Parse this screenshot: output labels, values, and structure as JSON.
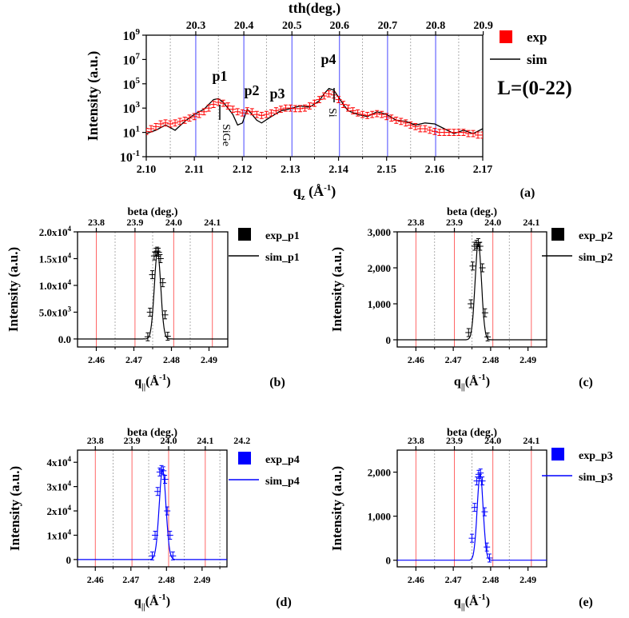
{
  "chart_data": [
    {
      "type": "line",
      "panel_label": "(a)",
      "xlabel": "q",
      "xlabel_sub": "z",
      "xlabel_unit": " (Å",
      "xlabel_unit_sup": "-1",
      "xlabel_unit_end": ")",
      "ylabel": "Intensity (a.u.)",
      "x2label": "tth(deg.)",
      "xlim": [
        2.1,
        2.17
      ],
      "ylim": [
        0.1,
        1000000000
      ],
      "yscale": "log",
      "xticks": [
        "2.10",
        "2.11",
        "2.12",
        "2.13",
        "2.14",
        "2.15",
        "2.16",
        "2.17"
      ],
      "yticks": [
        {
          "base": "10",
          "exp": "-1"
        },
        {
          "base": "10",
          "exp": "1"
        },
        {
          "base": "10",
          "exp": "3"
        },
        {
          "base": "10",
          "exp": "5"
        },
        {
          "base": "10",
          "exp": "7"
        },
        {
          "base": "10",
          "exp": "9"
        }
      ],
      "x2ticks": [
        "20.3",
        "20.4",
        "20.5",
        "20.6",
        "20.7",
        "20.8",
        "20.9"
      ],
      "x2tick_q": [
        2.1103,
        2.1203,
        2.1303,
        2.1402,
        2.1502,
        2.1602,
        2.1701
      ],
      "legend": [
        {
          "name": "exp",
          "marker": "square",
          "color": "#ff0000"
        },
        {
          "name": "sim",
          "marker": "line",
          "color": "#000000"
        }
      ],
      "annotations": {
        "p1": "p1",
        "p2": "p2",
        "p3": "p3",
        "p4": "p4",
        "sige": "SiGe",
        "si": "Si",
        "range": "L=(0-22)"
      },
      "series": [
        {
          "name": "sim",
          "color": "#000000",
          "x": [
            2.1,
            2.102,
            2.104,
            2.106,
            2.108,
            2.11,
            2.112,
            2.113,
            2.114,
            2.115,
            2.116,
            2.117,
            2.118,
            2.119,
            2.12,
            2.121,
            2.122,
            2.123,
            2.124,
            2.126,
            2.128,
            2.13,
            2.132,
            2.134,
            2.136,
            2.137,
            2.138,
            2.139,
            2.14,
            2.141,
            2.142,
            2.144,
            2.146,
            2.148,
            2.15,
            2.152,
            2.154,
            2.156,
            2.158,
            2.16,
            2.162,
            2.164,
            2.166,
            2.168,
            2.17
          ],
          "y": [
            8,
            15,
            40,
            15,
            80,
            300,
            800,
            2000,
            5000,
            6000,
            3000,
            1000,
            300,
            40,
            60,
            800,
            300,
            100,
            60,
            200,
            600,
            900,
            1500,
            1200,
            4000,
            15000,
            40000,
            30000,
            8000,
            2000,
            600,
            300,
            200,
            500,
            300,
            100,
            80,
            40,
            60,
            50,
            20,
            8,
            15,
            8,
            20
          ]
        },
        {
          "name": "exp",
          "color": "#ff0000",
          "x": [
            2.1,
            2.101,
            2.102,
            2.103,
            2.104,
            2.105,
            2.106,
            2.107,
            2.108,
            2.109,
            2.11,
            2.111,
            2.112,
            2.113,
            2.114,
            2.115,
            2.116,
            2.117,
            2.118,
            2.119,
            2.12,
            2.121,
            2.122,
            2.123,
            2.124,
            2.125,
            2.126,
            2.127,
            2.128,
            2.129,
            2.13,
            2.131,
            2.132,
            2.133,
            2.134,
            2.135,
            2.136,
            2.137,
            2.138,
            2.139,
            2.14,
            2.141,
            2.142,
            2.143,
            2.144,
            2.145,
            2.146,
            2.147,
            2.148,
            2.149,
            2.15,
            2.151,
            2.152,
            2.153,
            2.154,
            2.155,
            2.156,
            2.157,
            2.158,
            2.159,
            2.16,
            2.161,
            2.162,
            2.163,
            2.164,
            2.165,
            2.166,
            2.167,
            2.168,
            2.169,
            2.17
          ],
          "y": [
            12,
            20,
            30,
            50,
            60,
            50,
            60,
            80,
            100,
            150,
            200,
            300,
            500,
            1000,
            2000,
            3000,
            2500,
            1500,
            800,
            500,
            400,
            600,
            500,
            300,
            250,
            300,
            400,
            600,
            800,
            1000,
            1000,
            900,
            900,
            1000,
            1500,
            2500,
            5000,
            10000,
            15000,
            12000,
            5000,
            2000,
            1000,
            600,
            400,
            300,
            250,
            300,
            350,
            300,
            200,
            150,
            100,
            80,
            60,
            40,
            30,
            20,
            20,
            15,
            12,
            10,
            10,
            10,
            10,
            10,
            10,
            8,
            8,
            6,
            6
          ]
        }
      ]
    },
    {
      "type": "line",
      "panel_label": "(b)",
      "xlabel": "q",
      "xlabel_sub": "||",
      "xlabel_unit": "(Å",
      "xlabel_unit_sup": "-1",
      "xlabel_unit_end": ")",
      "ylabel": "Intensity (a.u.)",
      "x2label": "beta (deg.)",
      "xlim": [
        2.455,
        2.495
      ],
      "ylim": [
        -1500,
        20000
      ],
      "xticks": [
        "2.46",
        "2.47",
        "2.48",
        "2.49"
      ],
      "yticks": [
        "0.0",
        "5.0x10",
        "1.0x10",
        "1.5x10",
        "2.0x10"
      ],
      "ytick_exps": [
        "",
        "3",
        "4",
        "4",
        "4"
      ],
      "ytick_values": [
        0,
        5000,
        10000,
        15000,
        20000
      ],
      "x2ticks": [
        "23.8",
        "23.9",
        "24.0",
        "24.1"
      ],
      "x2tick_q": [
        2.46,
        2.4703,
        2.4806,
        2.4909
      ],
      "legend": [
        {
          "name": "exp_p1",
          "marker": "square",
          "color": "#000000"
        },
        {
          "name": "sim_p1",
          "marker": "line",
          "color": "#000000"
        }
      ],
      "series": [
        {
          "name": "sim_p1",
          "color": "#000000",
          "center": 2.4763,
          "sigma": 0.00085,
          "amplitude": 16300
        },
        {
          "name": "exp_p1",
          "color": "#000000",
          "x": [
            2.4737,
            2.4743,
            2.4749,
            2.4754,
            2.4758,
            2.4762,
            2.4766,
            2.4771,
            2.4777,
            2.4783,
            2.479
          ],
          "y": [
            400,
            5000,
            12000,
            15500,
            16200,
            16400,
            16200,
            15000,
            10500,
            4500,
            500
          ]
        }
      ]
    },
    {
      "type": "line",
      "panel_label": "(c)",
      "xlabel": "q",
      "xlabel_sub": "||",
      "xlabel_unit": "(Å",
      "xlabel_unit_sup": "-1",
      "xlabel_unit_end": ")",
      "ylabel": "Intensity (a.u.)",
      "x2label": "beta (deg.)",
      "xlim": [
        2.455,
        2.495
      ],
      "ylim": [
        -200,
        3000
      ],
      "xticks": [
        "2.46",
        "2.47",
        "2.48",
        "2.49"
      ],
      "yticks": [
        "0",
        "1,000",
        "2,000",
        "3,000"
      ],
      "ytick_values": [
        0,
        1000,
        2000,
        3000
      ],
      "x2ticks": [
        "23.8",
        "23.9",
        "24.0",
        "24.1"
      ],
      "x2tick_q": [
        2.46,
        2.4703,
        2.4806,
        2.4909
      ],
      "legend": [
        {
          "name": "exp_p2",
          "marker": "square",
          "color": "#000000"
        },
        {
          "name": "sim_p2",
          "marker": "line",
          "color": "#000000"
        }
      ],
      "series": [
        {
          "name": "sim_p2",
          "color": "#000000",
          "center": 2.4767,
          "sigma": 0.00085,
          "amplitude": 2700
        },
        {
          "name": "exp_p2",
          "color": "#000000",
          "x": [
            2.4741,
            2.4747,
            2.4752,
            2.4757,
            2.4762,
            2.4767,
            2.4772,
            2.4778,
            2.4785,
            2.4792
          ],
          "y": [
            200,
            1000,
            2050,
            2600,
            2650,
            2700,
            2600,
            2000,
            750,
            80
          ]
        }
      ]
    },
    {
      "type": "line",
      "panel_label": "(d)",
      "xlabel": "q",
      "xlabel_sub": "||",
      "xlabel_unit": "(Å",
      "xlabel_unit_sup": "-1",
      "xlabel_unit_end": ")",
      "ylabel": "Intensity (a.u.)",
      "x2label": "beta (deg.)",
      "xlim": [
        2.455,
        2.497
      ],
      "ylim": [
        -3000,
        45000
      ],
      "xticks": [
        "2.46",
        "2.47",
        "2.48",
        "2.49"
      ],
      "yticks": [
        "0",
        "1x10",
        "2x10",
        "3x10",
        "4x10"
      ],
      "ytick_exps": [
        "",
        "4",
        "4",
        "4",
        "4"
      ],
      "ytick_values": [
        0,
        10000,
        20000,
        30000,
        40000
      ],
      "x2ticks": [
        "23.8",
        "23.9",
        "24.0",
        "24.1",
        "24.2"
      ],
      "x2tick_q": [
        2.46,
        2.4703,
        2.4806,
        2.4909,
        2.5012
      ],
      "legend": [
        {
          "name": "exp_p4",
          "marker": "square",
          "color": "#0000ff"
        },
        {
          "name": "sim_p4",
          "marker": "line",
          "color": "#0000ff"
        }
      ],
      "series": [
        {
          "name": "sim_p4",
          "color": "#0000ff",
          "center": 2.4789,
          "sigma": 0.00095,
          "amplitude": 37000
        },
        {
          "name": "exp_p4",
          "color": "#0000ff",
          "x": [
            2.476,
            2.4768,
            2.4775,
            2.4781,
            2.4786,
            2.4791,
            2.4796,
            2.4802,
            2.481,
            2.4818
          ],
          "y": [
            1500,
            10000,
            28000,
            36000,
            37000,
            36500,
            33000,
            20000,
            10000,
            1500
          ]
        }
      ]
    },
    {
      "type": "line",
      "panel_label": "(e)",
      "xlabel": "q",
      "xlabel_sub": "||",
      "xlabel_unit": "(Å",
      "xlabel_unit_sup": "-1",
      "xlabel_unit_end": ")",
      "ylabel": "Intensity (a.u.)",
      "x2label": "beta (deg.)",
      "xlim": [
        2.455,
        2.495
      ],
      "ylim": [
        -150,
        2500
      ],
      "xticks": [
        "2.46",
        "2.47",
        "2.48",
        "2.49"
      ],
      "yticks": [
        "0",
        "1,000",
        "2,000"
      ],
      "ytick_values": [
        0,
        1000,
        2000
      ],
      "x2ticks": [
        "23.8",
        "23.9",
        "24.0",
        "24.1"
      ],
      "x2tick_q": [
        2.46,
        2.4703,
        2.4806,
        2.4909
      ],
      "legend": [
        {
          "name": "exp_p3",
          "marker": "square",
          "color": "#0000ff"
        },
        {
          "name": "sim_p3",
          "marker": "line",
          "color": "#0000ff"
        }
      ],
      "series": [
        {
          "name": "sim_p3",
          "color": "#0000ff",
          "center": 2.4772,
          "sigma": 0.0008,
          "amplitude": 1950
        },
        {
          "name": "exp_p3",
          "color": "#0000ff",
          "x": [
            2.475,
            2.4757,
            2.4763,
            2.4768,
            2.4773,
            2.4778,
            2.4784,
            2.479,
            2.4797
          ],
          "y": [
            500,
            1200,
            1800,
            1950,
            1980,
            1800,
            1100,
            300,
            50
          ]
        }
      ]
    }
  ]
}
